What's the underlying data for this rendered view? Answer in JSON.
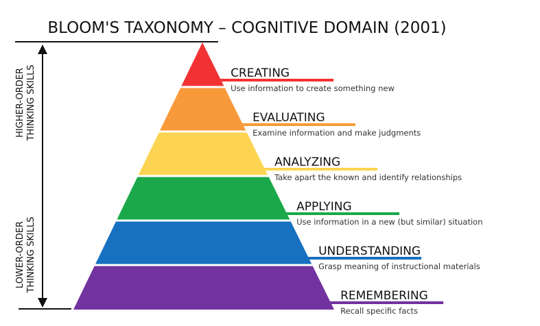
{
  "title": "BLOOM'S TAXONOMY – COGNITIVE DOMAIN (2001)",
  "side_labels": {
    "higher": [
      "HIGHER-ORDER",
      "THINKING SKILLS"
    ],
    "lower": [
      "LOWER-ORDER",
      "THINKING SKILLS"
    ]
  },
  "levels": [
    {
      "name": "CREATING",
      "description": "Use information to create something new",
      "color": "#f23232"
    },
    {
      "name": "EVALUATING",
      "description": "Examine information and make judgments",
      "color": "#f89a3b"
    },
    {
      "name": "ANALYZING",
      "description": "Take apart the known and identify relationships",
      "color": "#fdd452"
    },
    {
      "name": "APPLYING",
      "description": "Use information in a new (but similar) situation",
      "color": "#1ba84a"
    },
    {
      "name": "UNDERSTANDING",
      "description": "Grasp meaning of instructional materials",
      "color": "#1870c0"
    },
    {
      "name": "REMEMBERING",
      "description": "Recall specific facts",
      "color": "#7232a0"
    }
  ]
}
